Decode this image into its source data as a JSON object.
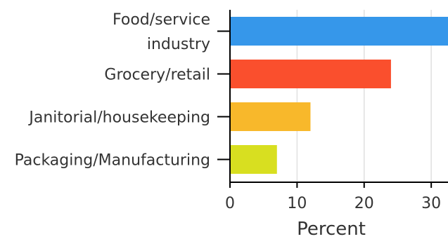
{
  "chart_data": {
    "type": "bar",
    "orientation": "horizontal",
    "categories": [
      [
        "Food/service",
        "industry"
      ],
      [
        "Grocery/retail"
      ],
      [
        "Janitorial/housekeeping"
      ],
      [
        "Packaging/Manufacturing"
      ]
    ],
    "values": [
      33,
      24,
      12,
      7
    ],
    "colors": [
      "#3697ea",
      "#fa4f2d",
      "#f8b82b",
      "#d8df20"
    ],
    "xlabel": "Percent",
    "xlim": [
      0,
      32.5
    ],
    "xticks": [
      0,
      10,
      20,
      30
    ],
    "grid": "vertical"
  }
}
